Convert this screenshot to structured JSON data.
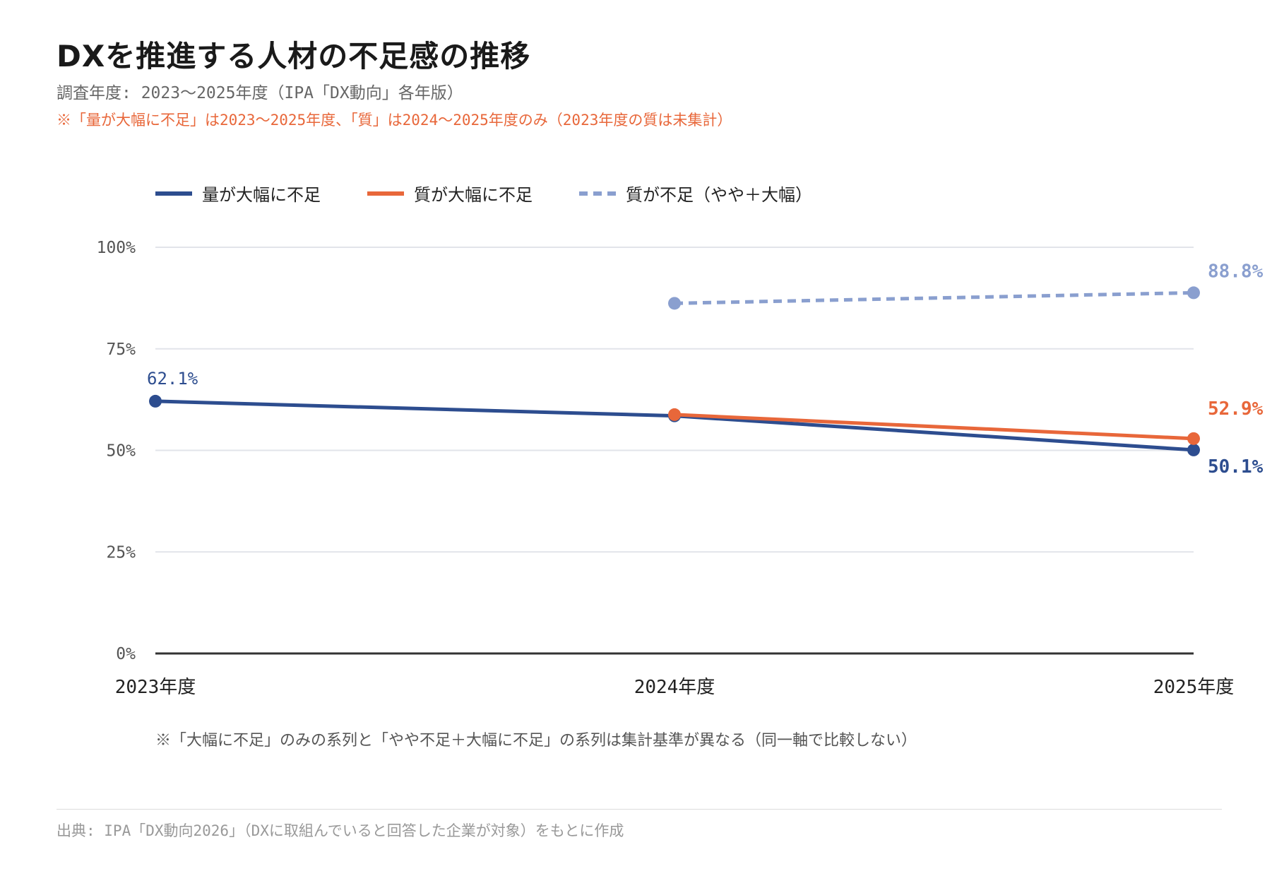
{
  "chart_data": {
    "type": "line",
    "title": "DXを推進する人材の不足感の推移",
    "subtitle": "調査年度: 2023〜2025年度（IPA「DX動向」各年版）",
    "note_top": "※「量が大幅に不足」は2023〜2025年度、「質」は2024〜2025年度のみ（2023年度の質は未集計）",
    "note_bottom": "※「大幅に不足」のみの系列と「やや不足＋大幅に不足」の系列は集計基準が異なる（同一軸で比較しない）",
    "source": "出典: IPA「DX動向2026」（DXに取組んでいると回答した企業が対象）をもとに作成",
    "categories": [
      "2023年度",
      "2024年度",
      "2025年度"
    ],
    "yticks": [
      "0%",
      "25%",
      "50%",
      "75%",
      "100%"
    ],
    "ylim": [
      0,
      100
    ],
    "grid": true,
    "legend_position": "top-left",
    "series": [
      {
        "name": "量が大幅に不足",
        "color": "#2d4d8f",
        "style": "solid",
        "values": [
          62.1,
          58.5,
          50.1
        ],
        "labels": [
          "62.1%",
          null,
          "50.1%"
        ]
      },
      {
        "name": "質が大幅に不足",
        "color": "#e8673a",
        "style": "solid",
        "values": [
          null,
          58.8,
          52.9
        ],
        "labels": [
          null,
          null,
          "52.9%"
        ]
      },
      {
        "name": "質が不足（やや＋大幅）",
        "color": "#8a9fcf",
        "style": "dashed",
        "values": [
          null,
          86.2,
          88.8
        ],
        "labels": [
          null,
          null,
          "88.8%"
        ]
      }
    ]
  }
}
